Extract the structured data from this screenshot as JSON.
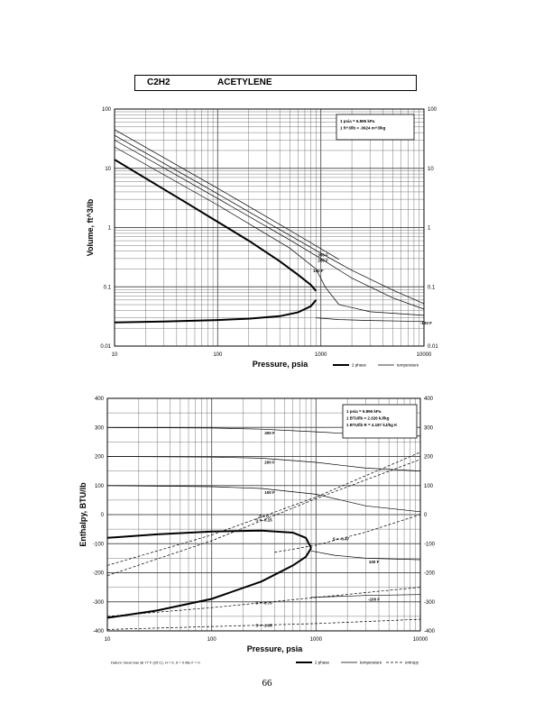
{
  "header": {
    "formula": "C2H2",
    "name": "ACETYLENE"
  },
  "page_number": "66",
  "chart_data": [
    {
      "type": "line",
      "x_scale": "log",
      "y_scale": "log",
      "xlabel": "Pressure,  psia",
      "ylabel": "Volume, ft^3/lb",
      "xlim": [
        10,
        10000
      ],
      "ylim": [
        0.01,
        100
      ],
      "x_ticks": [
        "10",
        "100",
        "1000",
        "10000"
      ],
      "y_ticks": [
        "0.01",
        "0.1",
        "1",
        "10",
        "100"
      ],
      "grid": true,
      "conversion_notes": [
        "1 psia = 6.895 kPa",
        "1 ft^3/lb = .0624 m^3/kg"
      ],
      "legend": {
        "placement": "bottom-right",
        "items": [
          "2 phase",
          "temperature"
        ]
      },
      "saturation_vapor": {
        "x": [
          10,
          20,
          50,
          100,
          200,
          400,
          600,
          800,
          900
        ],
        "y": [
          14,
          6.8,
          2.6,
          1.25,
          0.6,
          0.27,
          0.16,
          0.108,
          0.085
        ]
      },
      "saturation_liquid": {
        "x": [
          10,
          30,
          100,
          200,
          400,
          600,
          800,
          900
        ],
        "y": [
          0.025,
          0.026,
          0.0275,
          0.029,
          0.032,
          0.037,
          0.047,
          0.06
        ]
      },
      "isotherms": [
        {
          "label": "",
          "x": [
            10,
            100,
            500,
            1000,
            1500
          ],
          "y": [
            45,
            4.6,
            0.9,
            0.44,
            0.29
          ]
        },
        {
          "label": "300 F",
          "x": [
            10,
            100,
            500,
            1000,
            2000,
            5000,
            10000
          ],
          "y": [
            36,
            3.7,
            0.74,
            0.37,
            0.19,
            0.088,
            0.052
          ]
        },
        {
          "label": "200 F",
          "x": [
            10,
            100,
            500,
            1000,
            2000,
            5000,
            10000
          ],
          "y": [
            30,
            3.1,
            0.62,
            0.3,
            0.14,
            0.065,
            0.042
          ]
        },
        {
          "label": "100 F",
          "x": [
            10,
            100,
            500,
            900,
            1100,
            1500,
            3000,
            10000
          ],
          "y": [
            23,
            2.4,
            0.45,
            0.2,
            0.1,
            0.05,
            0.038,
            0.033
          ]
        },
        {
          "label": "-100 F",
          "x": [
            900,
            1500,
            3000,
            10000
          ],
          "y": [
            0.03,
            0.028,
            0.027,
            0.026
          ]
        }
      ]
    },
    {
      "type": "line",
      "x_scale": "log",
      "y_scale": "linear",
      "xlabel": "Pressure,  psia",
      "ylabel": "Enthalpy, BTU/lb",
      "xlim": [
        10,
        10000
      ],
      "ylim": [
        -400,
        400
      ],
      "x_ticks": [
        "10",
        "100",
        "1000",
        "10000"
      ],
      "y_ticks": [
        "-400",
        "-300",
        "-200",
        "-100",
        "0",
        "100",
        "200",
        "300",
        "400"
      ],
      "grid": true,
      "conversion_notes": [
        "1 psia = 6.895 kPa",
        "1 BTU/lb = 2.326 kJ/kg",
        "1 BTU/lb R = 4.187 kJ/kg K"
      ],
      "legend": {
        "placement": "bottom-right",
        "items": [
          "2 phase",
          "temperature",
          "entropy"
        ]
      },
      "footnote": "Datum: Ideal Gas @ 77 F (25 C), H = 0,  S = 0 Btu F = 0",
      "saturation_vapor": {
        "x": [
          10,
          30,
          100,
          300,
          600,
          800,
          900
        ],
        "y": [
          -80,
          -68,
          -58,
          -55,
          -62,
          -80,
          -115
        ]
      },
      "saturation_liquid": {
        "x": [
          10,
          30,
          100,
          300,
          600,
          800,
          900
        ],
        "y": [
          -355,
          -330,
          -290,
          -230,
          -175,
          -145,
          -115
        ]
      },
      "isotherms": [
        {
          "label": "300 F",
          "x": [
            10,
            100,
            300,
            1000,
            3000,
            10000
          ],
          "y": [
            300,
            298,
            294,
            285,
            275,
            270
          ]
        },
        {
          "label": "200 F",
          "x": [
            10,
            100,
            300,
            1000,
            3000,
            10000
          ],
          "y": [
            200,
            198,
            194,
            180,
            160,
            150
          ]
        },
        {
          "label": "100 F",
          "x": [
            10,
            100,
            300,
            1000,
            3000,
            10000
          ],
          "y": [
            100,
            96,
            90,
            70,
            30,
            10
          ]
        },
        {
          "label": "100 F",
          "x": [
            900,
            1500,
            3000,
            10000
          ],
          "y": [
            -125,
            -140,
            -150,
            -155
          ]
        },
        {
          "label": "-100 F",
          "x": [
            900,
            1500,
            3000,
            10000
          ],
          "y": [
            -285,
            -282,
            -278,
            -275
          ]
        }
      ],
      "entropy_lines": [
        {
          "label": "S = 0",
          "x": [
            10,
            100,
            1000,
            10000
          ],
          "y": [
            -175,
            -70,
            60,
            215
          ]
        },
        {
          "label": "S = -0.15",
          "x": [
            10,
            100,
            1000,
            10000
          ],
          "y": [
            -210,
            -90,
            55,
            190
          ]
        },
        {
          "label": "S = -0.47",
          "x": [
            400,
            1000,
            3000,
            10000
          ],
          "y": [
            -130,
            -105,
            -60,
            0
          ]
        },
        {
          "label": "S = -0.70",
          "x": [
            10,
            100,
            1000,
            10000
          ],
          "y": [
            -350,
            -320,
            -285,
            -250
          ]
        },
        {
          "label": "S = -1.05",
          "x": [
            10,
            100,
            1000,
            10000
          ],
          "y": [
            -395,
            -385,
            -375,
            -360
          ]
        }
      ]
    }
  ]
}
